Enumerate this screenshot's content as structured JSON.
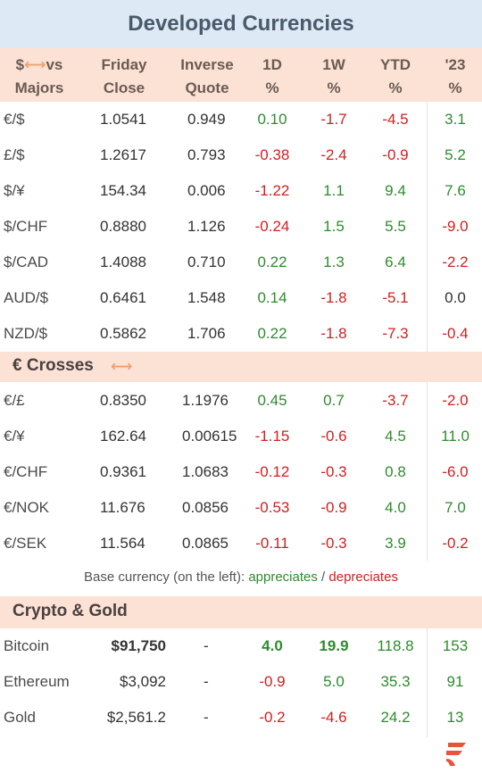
{
  "title": "Developed Currencies",
  "header": {
    "pair_line1": "$",
    "pair_line1_suffix": "vs",
    "pair_line2": "Majors",
    "friday_line1": "Friday",
    "friday_line2": "Close",
    "inverse_line1": "Inverse",
    "inverse_line2": "Quote",
    "d1_line1": "1D",
    "d1_line2": "%",
    "w1_line1": "1W",
    "w1_line2": "%",
    "ytd_line1": "YTD",
    "ytd_line2": "%",
    "y23_line1": "'23",
    "y23_line2": "%"
  },
  "majors": [
    {
      "pair": "€/$",
      "close": "1.0541",
      "inverse": "0.949",
      "d1": "0.10",
      "w1": "-1.7",
      "ytd": "-4.5",
      "y23": "3.1"
    },
    {
      "pair": "£/$",
      "close": "1.2617",
      "inverse": "0.793",
      "d1": "-0.38",
      "w1": "-2.4",
      "ytd": "-0.9",
      "y23": "5.2"
    },
    {
      "pair": "$/¥",
      "close": "154.34",
      "inverse": "0.006",
      "d1": "-1.22",
      "w1": "1.1",
      "ytd": "9.4",
      "y23": "7.6"
    },
    {
      "pair": "$/CHF",
      "close": "0.8880",
      "inverse": "1.126",
      "d1": "-0.24",
      "w1": "1.5",
      "ytd": "5.5",
      "y23": "-9.0"
    },
    {
      "pair": "$/CAD",
      "close": "1.4088",
      "inverse": "0.710",
      "d1": "0.22",
      "w1": "1.3",
      "ytd": "6.4",
      "y23": "-2.2"
    },
    {
      "pair": "AUD/$",
      "close": "0.6461",
      "inverse": "1.548",
      "d1": "0.14",
      "w1": "-1.8",
      "ytd": "-5.1",
      "y23": "0.0"
    },
    {
      "pair": "NZD/$",
      "close": "0.5862",
      "inverse": "1.706",
      "d1": "0.22",
      "w1": "-1.8",
      "ytd": "-7.3",
      "y23": "-0.4"
    }
  ],
  "crosses_title": "€ Crosses",
  "crosses": [
    {
      "pair": "€/£",
      "close": "0.8350",
      "inverse": "1.1976",
      "d1": "0.45",
      "w1": "0.7",
      "ytd": "-3.7",
      "y23": "-2.0"
    },
    {
      "pair": "€/¥",
      "close": "162.64",
      "inverse": "0.00615",
      "d1": "-1.15",
      "w1": "-0.6",
      "ytd": "4.5",
      "y23": "11.0"
    },
    {
      "pair": "€/CHF",
      "close": "0.9361",
      "inverse": "1.0683",
      "d1": "-0.12",
      "w1": "-0.3",
      "ytd": "0.8",
      "y23": "-6.0"
    },
    {
      "pair": "€/NOK",
      "close": "11.676",
      "inverse": "0.0856",
      "d1": "-0.53",
      "w1": "-0.9",
      "ytd": "4.0",
      "y23": "7.0"
    },
    {
      "pair": "€/SEK",
      "close": "11.564",
      "inverse": "0.0865",
      "d1": "-0.11",
      "w1": "-0.3",
      "ytd": "3.9",
      "y23": "-0.2"
    }
  ],
  "note": {
    "prefix": "Base currency (on the left):",
    "appreciates": "appreciates",
    "slash": "/",
    "depreciates": "depreciates"
  },
  "crypto_title": "Crypto & Gold",
  "crypto": [
    {
      "pair": "Bitcoin",
      "close": "$91,750",
      "inverse": "-",
      "d1": "4.0",
      "w1": "19.9",
      "ytd": "118.8",
      "y23": "153"
    },
    {
      "pair": "Ethereum",
      "close": "$3,092",
      "inverse": "-",
      "d1": "-0.9",
      "w1": "5.0",
      "ytd": "35.3",
      "y23": "91"
    },
    {
      "pair": "Gold",
      "close": "$2,561.2",
      "inverse": "-",
      "d1": "-0.2",
      "w1": "-4.6",
      "ytd": "24.2",
      "y23": "13"
    }
  ],
  "colors": {
    "positive": "#2e8b2e",
    "negative": "#d02020",
    "neutral": "#333333",
    "title_bg": "#dde9f5",
    "header_bg": "#fbe2d5",
    "arrow": "#f0a070",
    "logo": "#e8533a"
  },
  "icons": {
    "header_arrow": "left-right-arrow-icon",
    "crosses_arrow": "left-right-arrow-icon",
    "logo": "brand-logo-icon"
  }
}
